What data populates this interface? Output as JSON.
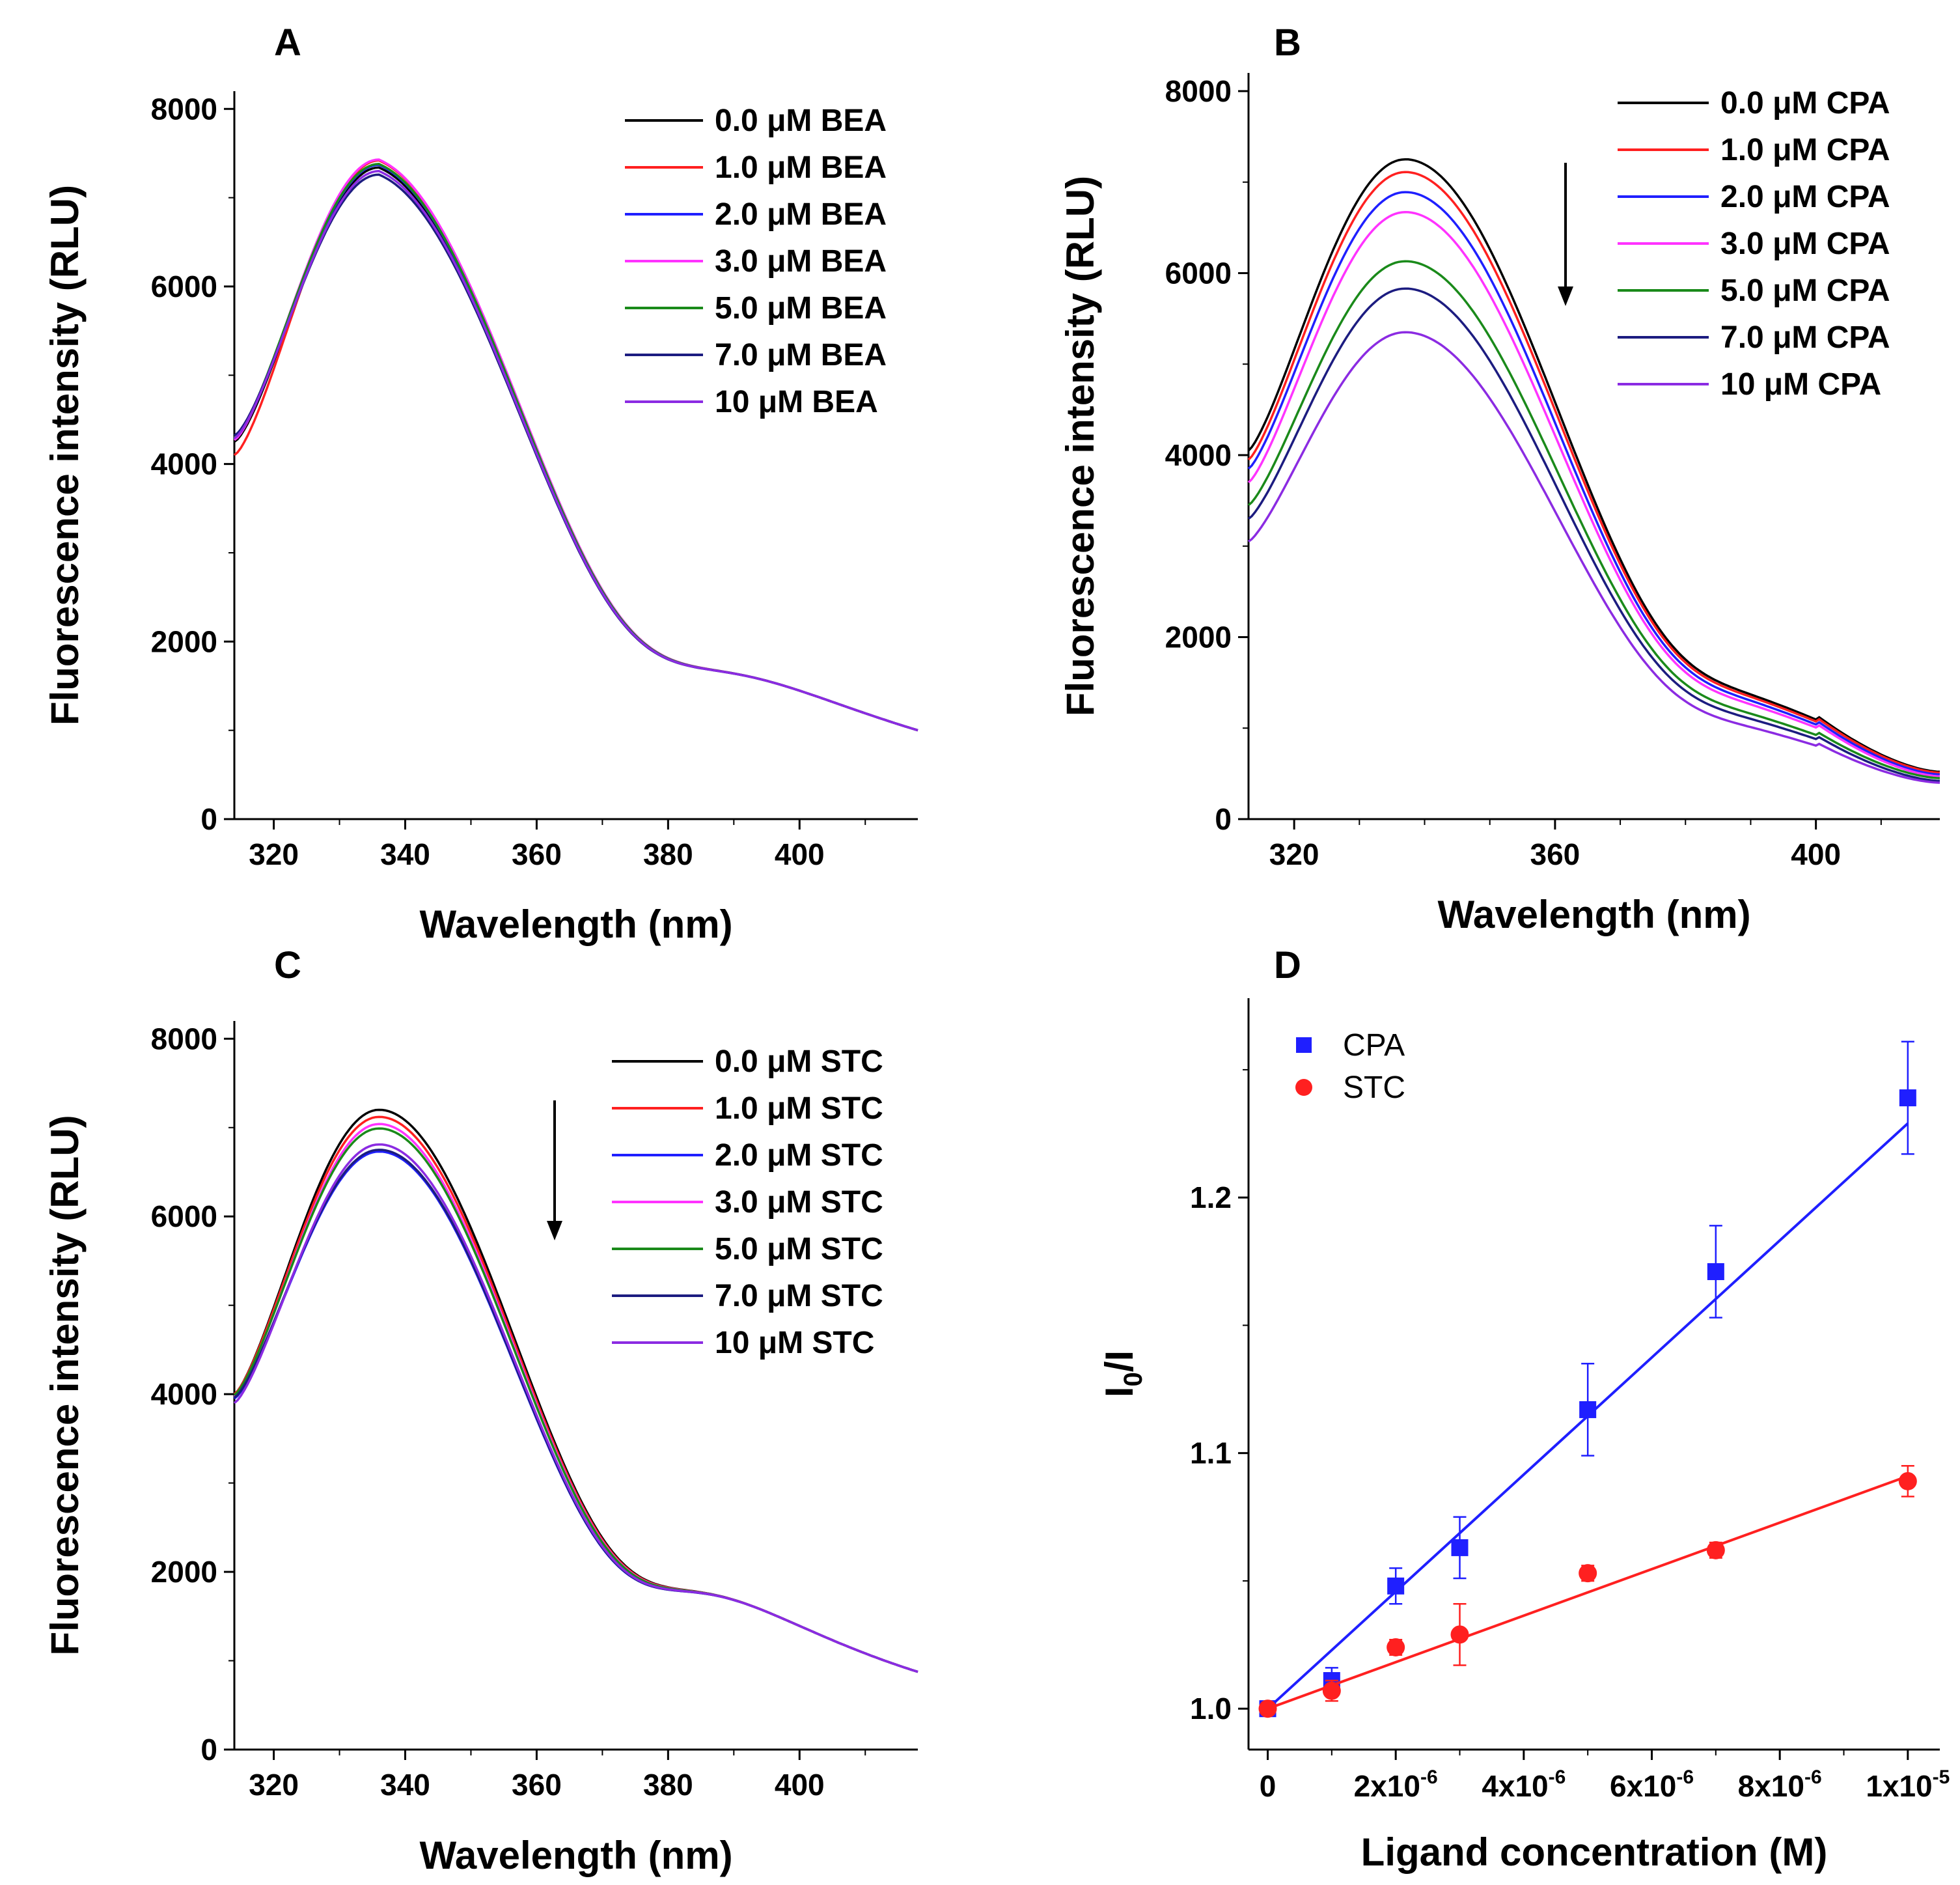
{
  "chart_data": [
    {
      "id": "A",
      "panel_label": "A",
      "type": "line",
      "xlabel": "Wavelength (nm)",
      "ylabel": "Fluorescence intensity (RLU)",
      "xlim": [
        314,
        418
      ],
      "ylim": [
        0,
        8200
      ],
      "xticks": [
        "320",
        "340",
        "360",
        "380",
        "400"
      ],
      "yticks": [
        "0",
        "2000",
        "4000",
        "6000",
        "8000"
      ],
      "legend_position": "top-right",
      "peak_shape": "bea",
      "series": [
        {
          "name": "0.0 μM BEA",
          "color": "#000000",
          "peak": 7340,
          "lead": 4250,
          "tail_scale": 1.0
        },
        {
          "name": "1.0 μM BEA",
          "color": "#ff2020",
          "peak": 7420,
          "lead": 4100,
          "tail_scale": 1.0
        },
        {
          "name": "2.0 μM BEA",
          "color": "#1f1fff",
          "peak": 7370,
          "lead": 4280,
          "tail_scale": 1.0
        },
        {
          "name": "3.0 μM BEA",
          "color": "#ff33ff",
          "peak": 7430,
          "lead": 4270,
          "tail_scale": 1.0
        },
        {
          "name": "5.0 μM BEA",
          "color": "#1a8a1a",
          "peak": 7380,
          "lead": 4300,
          "tail_scale": 1.0
        },
        {
          "name": "7.0 μM BEA",
          "color": "#1c1c80",
          "peak": 7260,
          "lead": 4320,
          "tail_scale": 1.0
        },
        {
          "name": "10 μM BEA",
          "color": "#8b2be2",
          "peak": 7300,
          "lead": 4290,
          "tail_scale": 1.0
        }
      ]
    },
    {
      "id": "B",
      "panel_label": "B",
      "type": "line",
      "xlabel": "Wavelength (nm)",
      "ylabel": "Fluorescence intensity (RLU)",
      "xlim": [
        313,
        419
      ],
      "ylim": [
        0,
        8200
      ],
      "xticks": [
        "320",
        "360",
        "400"
      ],
      "yticks": [
        "0",
        "2000",
        "4000",
        "6000",
        "8000"
      ],
      "legend_position": "top-right",
      "annotation": "downward arrow",
      "peak_shape": "cpa",
      "series": [
        {
          "name": "0.0 μM CPA",
          "color": "#000000",
          "peak": 7250,
          "lead": 4050,
          "tail": 520
        },
        {
          "name": "1.0 μM CPA",
          "color": "#ff2020",
          "peak": 7110,
          "lead": 3950,
          "tail": 510
        },
        {
          "name": "2.0 μM CPA",
          "color": "#1f1fff",
          "peak": 6890,
          "lead": 3850,
          "tail": 490
        },
        {
          "name": "3.0 μM CPA",
          "color": "#ff33ff",
          "peak": 6670,
          "lead": 3700,
          "tail": 470
        },
        {
          "name": "5.0 μM CPA",
          "color": "#1a8a1a",
          "peak": 6130,
          "lead": 3450,
          "tail": 450
        },
        {
          "name": "7.0 μM CPA",
          "color": "#1c1c80",
          "peak": 5830,
          "lead": 3300,
          "tail": 420
        },
        {
          "name": "10 μM CPA",
          "color": "#8b2be2",
          "peak": 5350,
          "lead": 3050,
          "tail": 400
        }
      ]
    },
    {
      "id": "C",
      "panel_label": "C",
      "type": "line",
      "xlabel": "Wavelength (nm)",
      "ylabel": "Fluorescence intensity (RLU)",
      "xlim": [
        314,
        418
      ],
      "ylim": [
        0,
        8200
      ],
      "xticks": [
        "320",
        "340",
        "360",
        "380",
        "400"
      ],
      "yticks": [
        "0",
        "2000",
        "4000",
        "6000",
        "8000"
      ],
      "legend_position": "top-right",
      "annotation": "downward arrow",
      "peak_shape": "stc",
      "series": [
        {
          "name": "0.0 μM STC",
          "color": "#000000",
          "peak": 7200,
          "lead": 4000
        },
        {
          "name": "1.0 μM STC",
          "color": "#ff2020",
          "peak": 7120,
          "lead": 4000
        },
        {
          "name": "2.0 μM STC",
          "color": "#1f1fff",
          "peak": 6730,
          "lead": 3950
        },
        {
          "name": "3.0 μM STC",
          "color": "#ff33ff",
          "peak": 7040,
          "lead": 3970
        },
        {
          "name": "5.0 μM STC",
          "color": "#1a8a1a",
          "peak": 6990,
          "lead": 3990
        },
        {
          "name": "7.0 μM STC",
          "color": "#1c1c80",
          "peak": 6750,
          "lead": 3960
        },
        {
          "name": "10 μM STC",
          "color": "#8b2be2",
          "peak": 6810,
          "lead": 3900
        }
      ]
    },
    {
      "id": "D",
      "panel_label": "D",
      "type": "scatter",
      "xlabel": "Ligand concentration (M)",
      "ylabel_main": "I",
      "ylabel_sub": "0",
      "ylabel_tail": "/I",
      "xlim": [
        -3e-07,
        1.05e-05
      ],
      "ylim": [
        0.984,
        1.278
      ],
      "xticks": [
        {
          "value": 0,
          "base": "0",
          "exp": ""
        },
        {
          "value": 2e-06,
          "base": "2x10",
          "exp": "-6"
        },
        {
          "value": 4e-06,
          "base": "4x10",
          "exp": "-6"
        },
        {
          "value": 6e-06,
          "base": "6x10",
          "exp": "-6"
        },
        {
          "value": 8e-06,
          "base": "8x10",
          "exp": "-6"
        },
        {
          "value": 1e-05,
          "base": "1x10",
          "exp": "-5"
        }
      ],
      "yticks": [
        {
          "value": 1.0,
          "label": "1.0"
        },
        {
          "value": 1.1,
          "label": "1.1"
        },
        {
          "value": 1.2,
          "label": "1.2"
        }
      ],
      "legend_position": "top-left",
      "series": [
        {
          "name": "CPA",
          "color": "#1f1fff",
          "marker": "square",
          "x": [
            0,
            1e-06,
            2e-06,
            3e-06,
            5e-06,
            7e-06,
            1e-05
          ],
          "y": [
            1.0,
            1.011,
            1.048,
            1.063,
            1.117,
            1.171,
            1.239
          ],
          "err": [
            0.002,
            0.005,
            0.007,
            0.012,
            0.018,
            0.018,
            0.022
          ],
          "fit": [
            [
              0,
              1.0
            ],
            [
              1e-05,
              1.229
            ]
          ]
        },
        {
          "name": "STC",
          "color": "#ff2020",
          "marker": "circle",
          "x": [
            0,
            1e-06,
            2e-06,
            3e-06,
            5e-06,
            7e-06,
            1e-05
          ],
          "y": [
            1.0,
            1.007,
            1.024,
            1.029,
            1.053,
            1.062,
            1.089
          ],
          "err": [
            0.002,
            0.004,
            0.003,
            0.012,
            0.003,
            0.003,
            0.006
          ],
          "fit": [
            [
              0,
              1.0
            ],
            [
              1e-05,
              1.091
            ]
          ]
        }
      ]
    }
  ]
}
